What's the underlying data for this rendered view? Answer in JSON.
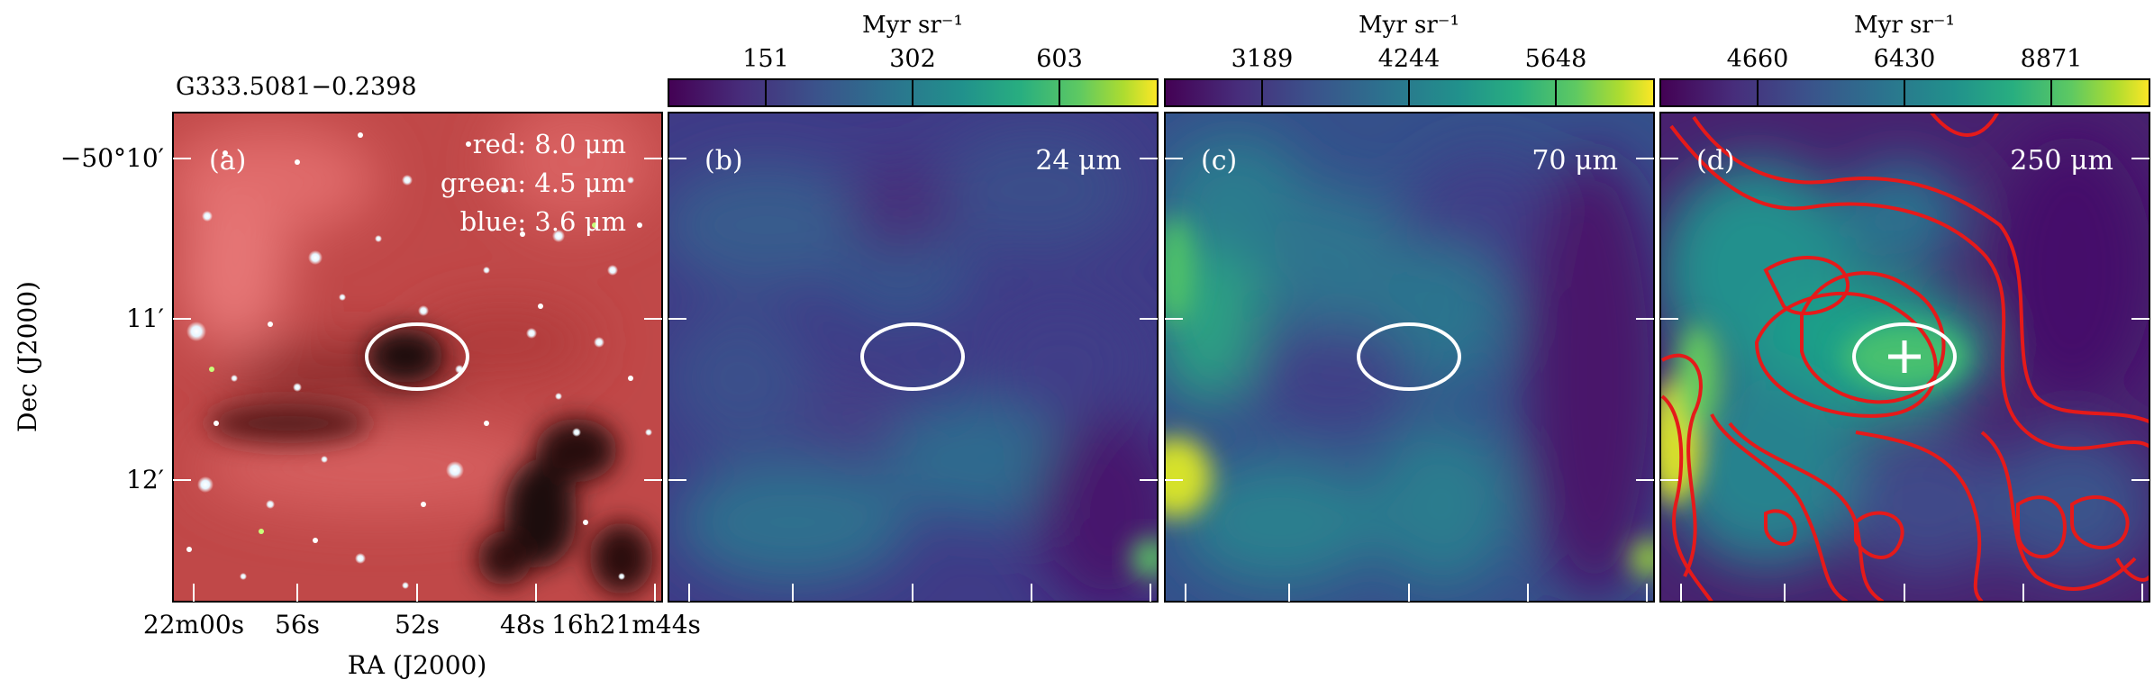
{
  "source_name": "G333.5081−0.2398",
  "axes": {
    "xlabel": "RA (J2000)",
    "ylabel": "Dec (J2000)",
    "ra_ticks": [
      "22m00s",
      "56s",
      "52s",
      "48s",
      "16h21m44s"
    ],
    "dec_ticks": [
      "−50°10′",
      "11′",
      "12′"
    ]
  },
  "panels": [
    {
      "tag": "(a)",
      "kind": "rgb",
      "legend": [
        "red: 8.0 μm",
        "green: 4.5 μm",
        "blue: 3.6 μm"
      ]
    },
    {
      "tag": "(b)",
      "kind": "map",
      "wavelength": "24 μm",
      "colorbar": {
        "unit": "Myr sr⁻¹",
        "ticks": [
          "151",
          "302",
          "603"
        ]
      }
    },
    {
      "tag": "(c)",
      "kind": "map",
      "wavelength": "70 μm",
      "colorbar": {
        "unit": "Myr sr⁻¹",
        "ticks": [
          "3189",
          "4244",
          "5648"
        ]
      }
    },
    {
      "tag": "(d)",
      "kind": "map",
      "wavelength": "250 μm",
      "colorbar": {
        "unit": "Myr sr⁻¹",
        "ticks": [
          "4660",
          "6430",
          "8871"
        ]
      }
    }
  ],
  "colors": {
    "viridis_low": "#440154",
    "viridis_mid": "#21918c",
    "viridis_high": "#fde725",
    "rgb_base": "#c84646",
    "contour": "#e51a1a",
    "marker": "#ffffff"
  }
}
